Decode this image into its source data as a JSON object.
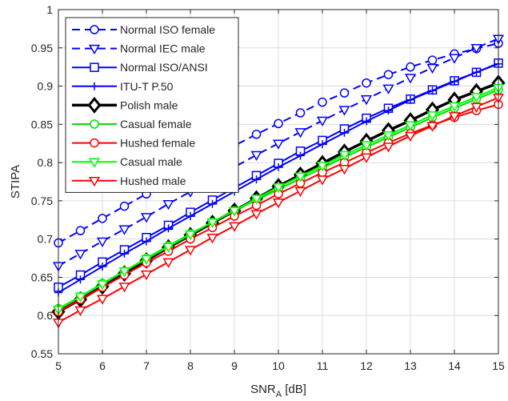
{
  "chart_data": {
    "type": "line",
    "title": "",
    "xlabel_main": "SNR",
    "xlabel_sub": "A",
    "xlabel_unit": " [dB]",
    "ylabel": "STIPA",
    "xlim": [
      5,
      15
    ],
    "ylim": [
      0.55,
      1
    ],
    "grid": true,
    "legend_position": "top-left",
    "xticks": [
      "5",
      "6",
      "7",
      "8",
      "9",
      "10",
      "11",
      "12",
      "13",
      "14",
      "15"
    ],
    "yticks": [
      "0.55",
      "0.6",
      "0.65",
      "0.7",
      "0.75",
      "0.8",
      "0.85",
      "0.9",
      "0.95",
      "1"
    ],
    "x": [
      5,
      5.5,
      6,
      6.5,
      7,
      7.5,
      8,
      8.5,
      9,
      9.5,
      10,
      10.5,
      11,
      11.5,
      12,
      12.5,
      13,
      13.5,
      14,
      14.5,
      15
    ],
    "series": [
      {
        "name": "Normal ISO female",
        "color": "#0000ff",
        "dash": "dashed",
        "marker": "circle",
        "values": [
          0.695,
          0.711,
          0.727,
          0.743,
          0.759,
          0.774,
          0.79,
          0.806,
          0.822,
          0.837,
          0.851,
          0.865,
          0.879,
          0.891,
          0.904,
          0.915,
          0.925,
          0.934,
          0.942,
          0.949,
          0.956
        ]
      },
      {
        "name": "Normal IEC male",
        "color": "#0000ff",
        "dash": "dashed",
        "marker": "triangle-down",
        "values": [
          0.665,
          0.681,
          0.697,
          0.713,
          0.729,
          0.746,
          0.762,
          0.778,
          0.794,
          0.81,
          0.825,
          0.84,
          0.855,
          0.869,
          0.883,
          0.897,
          0.911,
          0.924,
          0.937,
          0.95,
          0.962
        ]
      },
      {
        "name": "Normal ISO/ANSI",
        "color": "#0000ff",
        "dash": "solid",
        "marker": "square",
        "values": [
          0.637,
          0.653,
          0.67,
          0.686,
          0.702,
          0.718,
          0.735,
          0.751,
          0.767,
          0.783,
          0.799,
          0.815,
          0.829,
          0.844,
          0.858,
          0.871,
          0.883,
          0.895,
          0.907,
          0.918,
          0.93
        ]
      },
      {
        "name": "ITU-T P.50",
        "color": "#0000ff",
        "dash": "solid",
        "marker": "plus",
        "values": [
          0.63,
          0.647,
          0.664,
          0.681,
          0.697,
          0.714,
          0.73,
          0.746,
          0.762,
          0.778,
          0.794,
          0.809,
          0.824,
          0.839,
          0.854,
          0.868,
          0.882,
          0.894,
          0.906,
          0.918,
          0.929
        ]
      },
      {
        "name": "Polish male",
        "color": "#000000",
        "dash": "solid",
        "marker": "diamond",
        "values": [
          0.605,
          0.621,
          0.638,
          0.655,
          0.672,
          0.689,
          0.705,
          0.721,
          0.737,
          0.753,
          0.769,
          0.784,
          0.799,
          0.814,
          0.828,
          0.842,
          0.855,
          0.869,
          0.882,
          0.893,
          0.904
        ]
      },
      {
        "name": "Casual female",
        "color": "#00e000",
        "dash": "solid",
        "marker": "circle",
        "values": [
          0.609,
          0.625,
          0.642,
          0.658,
          0.675,
          0.691,
          0.707,
          0.722,
          0.737,
          0.751,
          0.765,
          0.779,
          0.793,
          0.807,
          0.82,
          0.833,
          0.846,
          0.859,
          0.871,
          0.883,
          0.895
        ]
      },
      {
        "name": "Hushed female",
        "color": "#ff0000",
        "dash": "solid",
        "marker": "circle",
        "values": [
          0.605,
          0.621,
          0.637,
          0.653,
          0.669,
          0.684,
          0.7,
          0.715,
          0.73,
          0.744,
          0.759,
          0.773,
          0.787,
          0.8,
          0.813,
          0.826,
          0.838,
          0.849,
          0.859,
          0.868,
          0.876
        ]
      },
      {
        "name": "Casual male",
        "color": "#00ff00",
        "dash": "solid",
        "marker": "triangle-down",
        "values": [
          0.608,
          0.625,
          0.641,
          0.658,
          0.674,
          0.69,
          0.706,
          0.722,
          0.737,
          0.753,
          0.768,
          0.782,
          0.796,
          0.81,
          0.823,
          0.836,
          0.849,
          0.862,
          0.874,
          0.886,
          0.898
        ]
      },
      {
        "name": "Hushed male",
        "color": "#ff0000",
        "dash": "solid",
        "marker": "triangle-down",
        "values": [
          0.591,
          0.607,
          0.622,
          0.638,
          0.654,
          0.67,
          0.686,
          0.702,
          0.717,
          0.733,
          0.748,
          0.763,
          0.778,
          0.792,
          0.807,
          0.821,
          0.835,
          0.848,
          0.861,
          0.873,
          0.885
        ]
      }
    ]
  }
}
